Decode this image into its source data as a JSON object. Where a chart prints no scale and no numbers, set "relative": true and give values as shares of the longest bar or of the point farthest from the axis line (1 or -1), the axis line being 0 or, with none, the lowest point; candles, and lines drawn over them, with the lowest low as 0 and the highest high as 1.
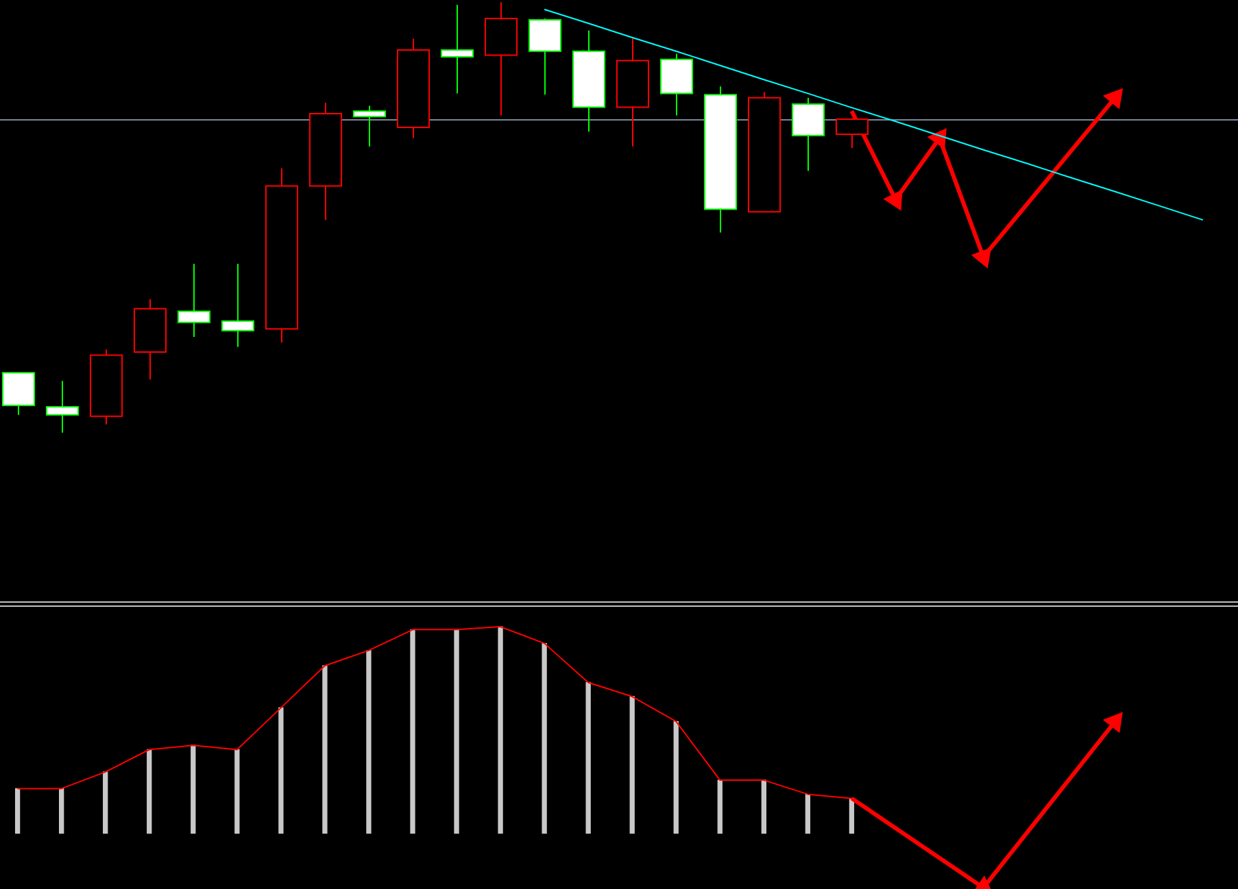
{
  "chart_data": [
    {
      "type": "candlestick",
      "relative": true,
      "categories": [
        null,
        null,
        null,
        null,
        null,
        null,
        null,
        null,
        null,
        null,
        null,
        null,
        null,
        null,
        null,
        null,
        null,
        null,
        null,
        null,
        null,
        null,
        null,
        null,
        null,
        null,
        null,
        null
      ],
      "ohlc": [
        [
          0.139,
          0.139,
          0.041,
          0.063
        ],
        [
          0.06,
          0.12,
          0,
          0.041
        ],
        [
          0.038,
          0.193,
          0.019,
          0.18
        ],
        [
          0.187,
          0.31,
          0.123,
          0.288
        ],
        [
          0.282,
          0.392,
          0.222,
          0.256
        ],
        [
          0.259,
          0.392,
          0.199,
          0.237
        ],
        [
          0.241,
          0.614,
          0.209,
          0.573
        ],
        [
          0.573,
          0.766,
          0.494,
          0.741
        ],
        [
          0.747,
          0.759,
          0.665,
          0.734
        ],
        [
          0.709,
          0.915,
          0.684,
          0.889
        ],
        [
          0.889,
          0.994,
          0.788,
          0.873
        ],
        [
          0.877,
          1,
          0.737,
          0.962
        ],
        [
          0.959,
          0.962,
          0.785,
          0.886
        ],
        [
          0.886,
          0.934,
          0.699,
          0.756
        ],
        [
          0.756,
          0.915,
          0.665,
          0.864
        ],
        [
          0.867,
          0.88,
          0.737,
          0.788
        ],
        [
          0.785,
          0.804,
          0.465,
          0.519
        ],
        [
          0.513,
          0.791,
          0.513,
          0.778
        ],
        [
          0.763,
          0.778,
          0.608,
          0.69
        ],
        [
          0.693,
          0.728,
          0.661,
          0.728
        ],
        null,
        null,
        null,
        null,
        null,
        null,
        null,
        null
      ],
      "colors": [
        "#ffffff",
        "#ffffff",
        "#000000",
        "#000000",
        "#ffffff",
        "#ffffff",
        "#000000",
        "#000000",
        "#ffffff",
        "#000000",
        "#ffffff",
        "#000000",
        "#ffffff",
        "#ffffff",
        "#000000",
        "#ffffff",
        "#ffffff",
        "#000000",
        "#ffffff",
        "#000000",
        null,
        null,
        null,
        null,
        null,
        null,
        null,
        null
      ],
      "ref_lines": [
        {
          "axis": "y",
          "value": 0.728,
          "color": "#778899"
        }
      ],
      "series": [
        {
          "type": "line",
          "values": [
            null,
            null,
            null,
            null,
            null,
            null,
            null,
            null,
            null,
            null,
            null,
            null,
            0.983,
            0.951,
            0.918,
            0.886,
            0.853,
            0.82,
            0.788,
            0.755,
            0.723,
            0.69,
            0.657,
            0.625,
            0.592,
            0.56,
            0.527,
            0.494
          ],
          "color": "#00ffff"
        },
        {
          "type": "line",
          "marker": "triangle",
          "values": [
            null,
            null,
            null,
            null,
            null,
            null,
            null,
            null,
            null,
            null,
            null,
            null,
            null,
            null,
            null,
            null,
            null,
            null,
            null,
            0.747,
            0.541,
            0.684,
            0.408,
            null,
            null,
            0.778,
            null,
            null
          ],
          "color": "#ff0000"
        }
      ]
    },
    {
      "type": "bar",
      "relative": true,
      "categories": [
        null,
        null,
        null,
        null,
        null,
        null,
        null,
        null,
        null,
        null,
        null,
        null,
        null,
        null,
        null,
        null,
        null,
        null,
        null,
        null
      ],
      "color": "#c8c8c8",
      "values": [
        0.216,
        0.216,
        0.297,
        0.405,
        0.426,
        0.405,
        0.608,
        0.811,
        0.885,
        0.986,
        0.986,
        1,
        0.919,
        0.73,
        0.662,
        0.541,
        0.257,
        0.257,
        0.189,
        0.169
      ]
    },
    {
      "type": "line",
      "relative": true,
      "categories": [
        null,
        null,
        null,
        null,
        null,
        null,
        null,
        null,
        null,
        null,
        null,
        null,
        null,
        null,
        null,
        null,
        null,
        null,
        null,
        null
      ],
      "color": "#ff0000",
      "values": [
        0.057,
        0.057,
        0.154,
        0.284,
        0.309,
        0.284,
        0.528,
        0.773,
        0.862,
        0.983,
        0.983,
        1,
        0.903,
        0.675,
        0.593,
        0.448,
        0.106,
        0.106,
        0.024,
        0
      ]
    },
    {
      "type": "line",
      "relative": true,
      "marker": "triangle",
      "categories": [
        null,
        null,
        null,
        null,
        null,
        null,
        null,
        null,
        null,
        null,
        null,
        null,
        null,
        null,
        null,
        null,
        null,
        null,
        null,
        null,
        null,
        null,
        null,
        null,
        null,
        null
      ],
      "color": "#ff0000",
      "values": [
        null,
        null,
        null,
        null,
        null,
        null,
        null,
        null,
        null,
        null,
        null,
        null,
        null,
        null,
        null,
        null,
        null,
        null,
        null,
        0.538,
        null,
        null,
        0,
        null,
        null,
        1
      ]
    }
  ]
}
